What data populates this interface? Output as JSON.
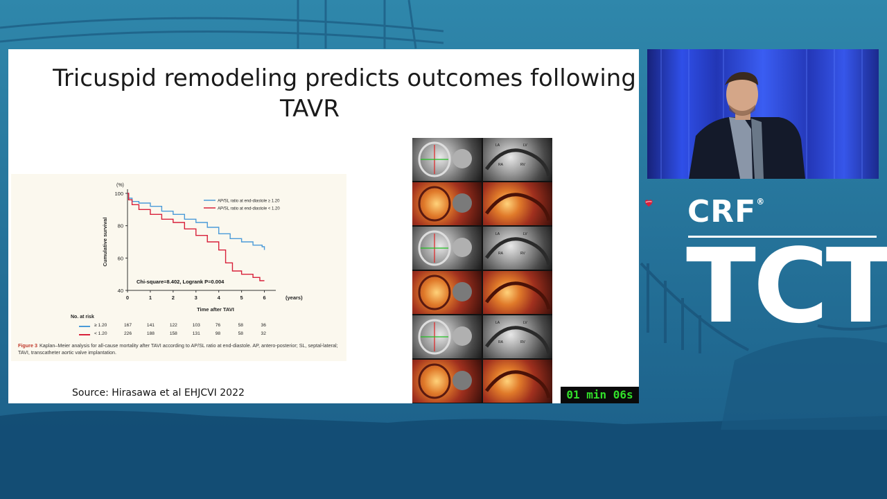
{
  "slide": {
    "title_line1": "Tricuspid remodeling predicts outcomes following",
    "title_line2": "TAVR",
    "source": "Source: Hirasawa et al EHJCVI 2022"
  },
  "figure": {
    "y_unit": "(%)",
    "y_label": "Cumulative survival",
    "x_label": "Time after TAVI",
    "x_unit": "(years)",
    "legend": [
      "AP/SL ratio at end-diastole ≥ 1.20",
      "AP/SL ratio at end-diastole < 1.20"
    ],
    "stat_text": "Chi-square=8.402, Logrank P=0.004",
    "risk_header": "No. at risk",
    "risk_rows": [
      {
        "label": "≥ 1.20",
        "values": [
          "167",
          "141",
          "122",
          "103",
          "76",
          "58",
          "36"
        ]
      },
      {
        "label": "< 1.20",
        "values": [
          "226",
          "188",
          "158",
          "131",
          "98",
          "58",
          "32"
        ]
      }
    ],
    "caption_label": "Figure 3",
    "caption_text": "Kaplan–Meier analysis for all-cause mortality after TAVI according to AP/SL ratio at end-diastole. AP, antero-posterior; SL, septal-lateral; TAVI, transcatheter aortic valve implantation."
  },
  "chart_data": {
    "type": "line",
    "title": "",
    "xlabel": "Time after TAVI",
    "ylabel": "Cumulative survival",
    "xlim": [
      0,
      6.5
    ],
    "ylim": [
      40,
      100
    ],
    "xticks": [
      "0",
      "1",
      "2",
      "3",
      "4",
      "5",
      "6"
    ],
    "yticks": [
      "40",
      "60",
      "80",
      "100"
    ],
    "legend_position": "top-right",
    "series": [
      {
        "name": "AP/SL ratio at end-diastole ≥ 1.20",
        "color": "#4a9ad8",
        "x": [
          0,
          0.05,
          0.2,
          0.5,
          1,
          1.5,
          2,
          2.5,
          3,
          3.5,
          4,
          4.5,
          5,
          5.5,
          5.9,
          6
        ],
        "y": [
          100,
          97,
          95,
          94,
          92,
          89,
          87,
          84,
          82,
          79,
          75,
          72,
          70,
          68,
          67,
          65
        ]
      },
      {
        "name": "AP/SL ratio at end-diastole < 1.20",
        "color": "#d8203a",
        "x": [
          0,
          0.05,
          0.2,
          0.5,
          1,
          1.5,
          2,
          2.5,
          3,
          3.5,
          4,
          4.3,
          4.6,
          5,
          5.5,
          5.8,
          6
        ],
        "y": [
          100,
          96,
          93,
          90,
          87,
          84,
          82,
          78,
          74,
          70,
          65,
          57,
          52,
          50,
          48,
          46,
          46
        ]
      }
    ]
  },
  "timer": "01 min 06s",
  "logo": {
    "crf": "CRF",
    "reg": "®",
    "tct": "TCT"
  },
  "colors": {
    "slide_bg": "#ffffff",
    "series_high": "#4a9ad8",
    "series_low": "#d8203a",
    "timer": "#32e02a"
  },
  "image_panel": {
    "tile_labels": [
      "LA",
      "LV",
      "RA",
      "RV"
    ]
  }
}
